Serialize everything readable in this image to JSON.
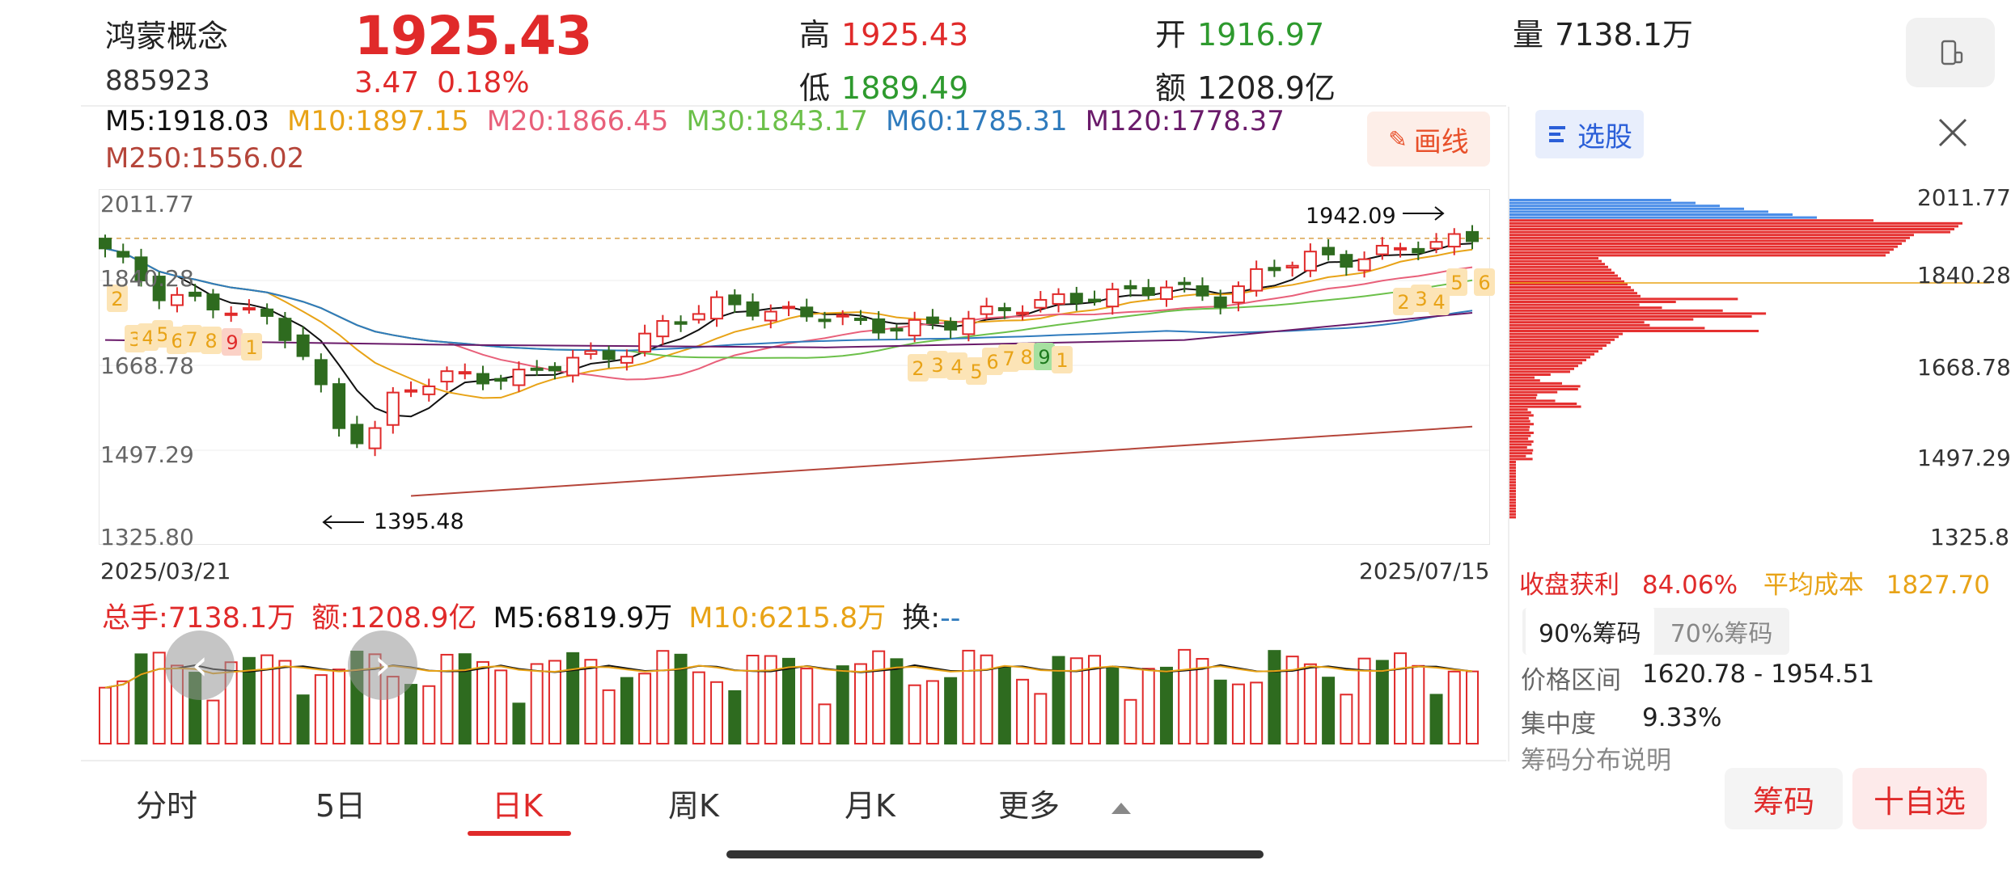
{
  "header": {
    "name": "鸿蒙概念",
    "code": "885923",
    "price": "1925.43",
    "change": "3.47",
    "change_pct": "0.18%",
    "quotes": [
      {
        "label": "高",
        "value": "1925.43",
        "color": "red"
      },
      {
        "label": "开",
        "value": "1916.97",
        "color": "green"
      },
      {
        "label": "量",
        "value": "7138.1万",
        "color": "dark"
      },
      {
        "label": "低",
        "value": "1889.49",
        "color": "green"
      },
      {
        "label": "额",
        "value": "1208.9亿",
        "color": "dark"
      }
    ],
    "toggle_icon": "phone-landscape-icon"
  },
  "ma_lines": [
    {
      "label": "M5:1918.03",
      "color": "#111111"
    },
    {
      "label": "M10:1897.15",
      "color": "#e8a317"
    },
    {
      "label": "M20:1866.45",
      "color": "#e8607a"
    },
    {
      "label": "M30:1843.17",
      "color": "#6cc04a"
    },
    {
      "label": "M60:1785.31",
      "color": "#2f7bbd"
    },
    {
      "label": "M120:1778.37",
      "color": "#6a1b6a"
    },
    {
      "label": "M250:1556.02",
      "color": "#b5453a"
    }
  ],
  "draw_button": "画线",
  "chart_data": {
    "type": "candlestick",
    "y_ticks": [
      "2011.77",
      "1840.28",
      "1668.78",
      "1497.29",
      "1325.80"
    ],
    "ylim": [
      1325.8,
      2011.77
    ],
    "start_date": "2025/03/21",
    "end_date": "2025/07/15",
    "high_annotation": "1942.09",
    "low_annotation": "1395.48",
    "td_labels": [
      "2",
      "3",
      "4",
      "5",
      "6",
      "7",
      "8",
      "9",
      "1",
      "2",
      "3",
      "4",
      "5",
      "6",
      "7",
      "8",
      "9",
      "1",
      "2",
      "3",
      "4",
      "5",
      "6"
    ]
  },
  "volume": {
    "total": "总手:7138.1万",
    "amount": "额:1208.9亿",
    "m5": "M5:6819.9万",
    "m10": "M10:6215.8万",
    "turnover_label": "换:",
    "turnover_value": "--"
  },
  "chip_panel": {
    "select_button": "选股",
    "y_ticks": [
      "2011.77",
      "1840.28",
      "1668.78",
      "1497.29",
      "1325.8"
    ],
    "profit_label": "收盘获利",
    "profit_value": "84.06%",
    "avg_cost_label": "平均成本",
    "avg_cost_value": "1827.70",
    "tabs": [
      "90%筹码",
      "70%筹码"
    ],
    "price_range_label": "价格区间",
    "price_range_value": "1620.78 - 1954.51",
    "concentration_label": "集中度",
    "concentration_value": "9.33%",
    "explain_label": "筹码分布说明"
  },
  "bottom_tabs": [
    "分时",
    "5日",
    "日K",
    "周K",
    "月K",
    "更多"
  ],
  "active_tab": "日K",
  "buttons": {
    "chip": "筹码",
    "watch": "十自选"
  }
}
